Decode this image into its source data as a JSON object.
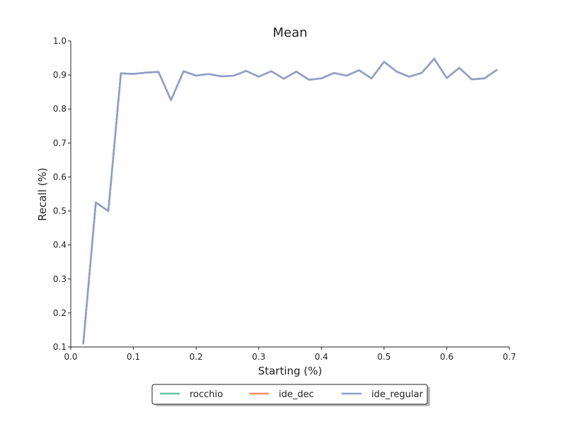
{
  "chart_data": {
    "type": "line",
    "title": "Mean",
    "xlabel": "Starting (%)",
    "ylabel": "Recall (%)",
    "xlim": [
      0.0,
      0.7
    ],
    "ylim": [
      0.1,
      1.0
    ],
    "xticks": [
      "0.0",
      "0.1",
      "0.2",
      "0.3",
      "0.4",
      "0.5",
      "0.6",
      "0.7"
    ],
    "yticks": [
      "0.1",
      "0.2",
      "0.3",
      "0.4",
      "0.5",
      "0.6",
      "0.7",
      "0.8",
      "0.9",
      "1.0"
    ],
    "grid": false,
    "legend_position": "bottom-center",
    "x": [
      0.02,
      0.04,
      0.06,
      0.08,
      0.1,
      0.12,
      0.14,
      0.16,
      0.18,
      0.2,
      0.22,
      0.24,
      0.26,
      0.28,
      0.3,
      0.32,
      0.34,
      0.36,
      0.38,
      0.4,
      0.42,
      0.44,
      0.46,
      0.48,
      0.5,
      0.52,
      0.54,
      0.56,
      0.58,
      0.6,
      0.62,
      0.64,
      0.66,
      0.68
    ],
    "series": [
      {
        "name": "rocchio",
        "color": "#66c2a5",
        "values": [
          0.11,
          0.525,
          0.5,
          0.905,
          0.903,
          0.907,
          0.909,
          0.826,
          0.911,
          0.898,
          0.903,
          0.896,
          0.898,
          0.912,
          0.895,
          0.911,
          0.889,
          0.91,
          0.886,
          0.89,
          0.906,
          0.898,
          0.914,
          0.89,
          0.939,
          0.91,
          0.895,
          0.906,
          0.948,
          0.891,
          0.921,
          0.887,
          0.89,
          0.915
        ]
      },
      {
        "name": "ide_dec",
        "color": "#fc8d62",
        "values": [
          0.11,
          0.525,
          0.5,
          0.905,
          0.903,
          0.907,
          0.909,
          0.826,
          0.911,
          0.898,
          0.903,
          0.896,
          0.898,
          0.912,
          0.895,
          0.911,
          0.889,
          0.91,
          0.886,
          0.89,
          0.906,
          0.898,
          0.914,
          0.89,
          0.939,
          0.91,
          0.895,
          0.906,
          0.948,
          0.891,
          0.921,
          0.887,
          0.89,
          0.915
        ]
      },
      {
        "name": "ide_regular",
        "color": "#8da0cb",
        "values": [
          0.11,
          0.525,
          0.5,
          0.905,
          0.903,
          0.907,
          0.909,
          0.826,
          0.911,
          0.898,
          0.903,
          0.896,
          0.898,
          0.912,
          0.895,
          0.911,
          0.889,
          0.91,
          0.886,
          0.89,
          0.906,
          0.898,
          0.914,
          0.89,
          0.939,
          0.91,
          0.895,
          0.906,
          0.948,
          0.891,
          0.921,
          0.887,
          0.89,
          0.915
        ]
      }
    ]
  }
}
